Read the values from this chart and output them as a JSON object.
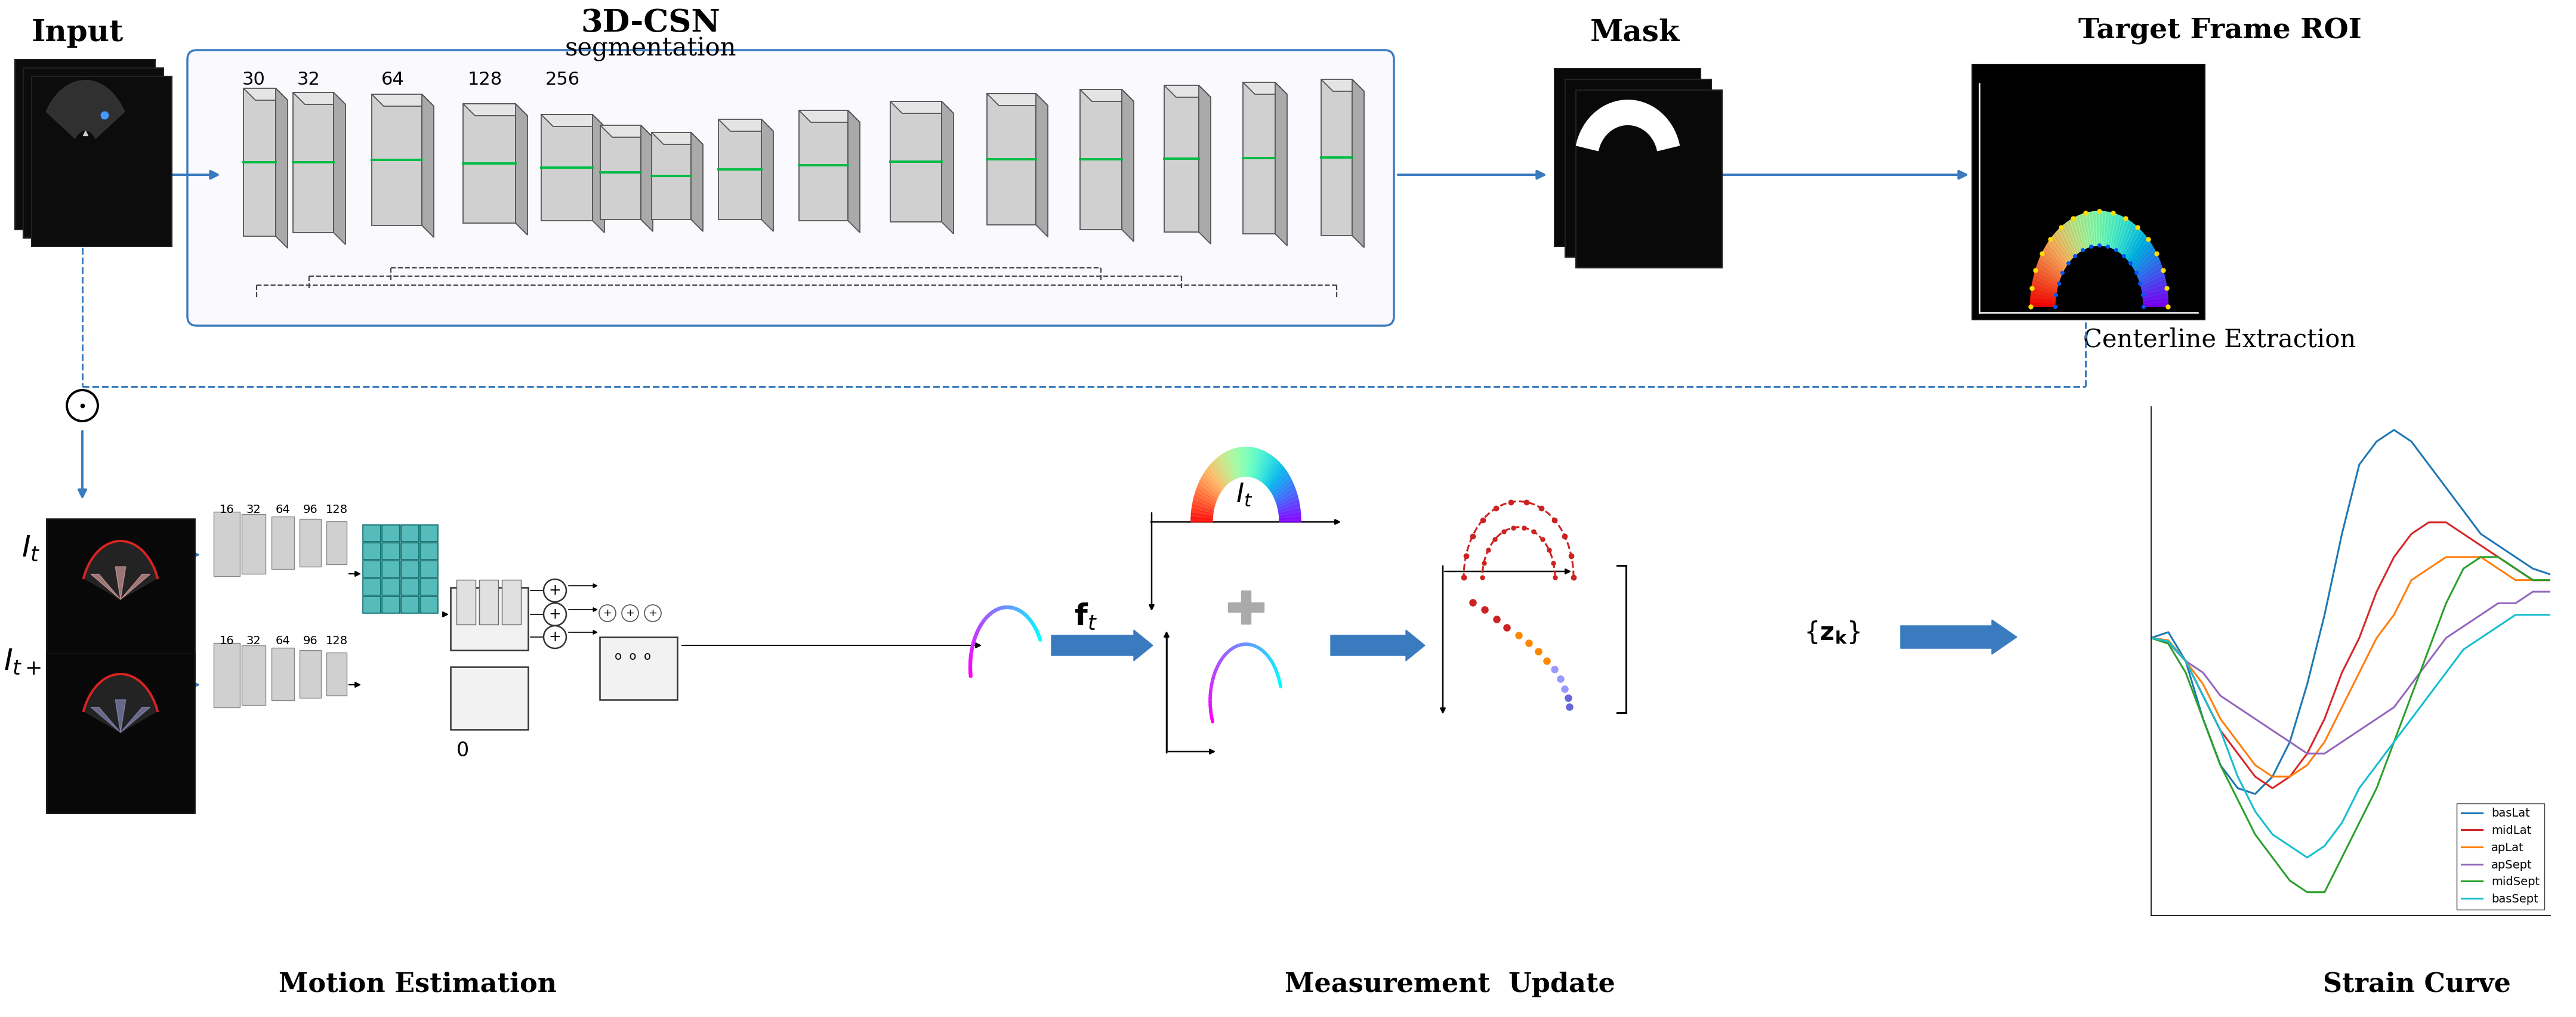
{
  "bg_color": "#ffffff",
  "arrow_color": "#3a7bbf",
  "dashed_color": "#3a7bbf",
  "labels": {
    "input": "Input",
    "cnn3d": "3D-CSN",
    "segmentation": "segmentation",
    "mask": "Mask",
    "target_frame_roi": "Target Frame ROI",
    "centerline": "Centerline Extraction",
    "motion_estimation": "Motion Estimation",
    "measurement_update": "Measurement  Update",
    "strain_curve_label": "Strain Curve"
  },
  "legend_entries": [
    "basLat",
    "midLat",
    "apLat",
    "apSept",
    "midSept",
    "basSept"
  ],
  "legend_colors": [
    "#1f77b4",
    "#d62728",
    "#ff7f0e",
    "#9467bd",
    "#2ca02c",
    "#17becf"
  ],
  "strain_curves": {
    "basLat": [
      0,
      0.5,
      -2,
      -7,
      -11,
      -13,
      -13.5,
      -12,
      -9,
      -4,
      2,
      9,
      15,
      17,
      18,
      17,
      15,
      13,
      11,
      9,
      8,
      7,
      6,
      5.5
    ],
    "midLat": [
      0,
      -0.3,
      -2,
      -5,
      -8,
      -10,
      -12,
      -13,
      -12,
      -10,
      -7,
      -3,
      0,
      4,
      7,
      9,
      10,
      10,
      9,
      8,
      7,
      6,
      5,
      5
    ],
    "apLat": [
      0,
      -0.2,
      -2,
      -4,
      -7,
      -9,
      -11,
      -12,
      -12,
      -11,
      -9,
      -6,
      -3,
      0,
      2,
      5,
      6,
      7,
      7,
      7,
      6,
      5,
      5,
      5
    ],
    "apSept": [
      0,
      -0.4,
      -2,
      -3,
      -5,
      -6,
      -7,
      -8,
      -9,
      -10,
      -10,
      -9,
      -8,
      -7,
      -6,
      -4,
      -2,
      0,
      1,
      2,
      3,
      3,
      4,
      4
    ],
    "midSept": [
      0,
      -0.5,
      -3,
      -7,
      -11,
      -14,
      -17,
      -19,
      -21,
      -22,
      -22,
      -19,
      -16,
      -13,
      -9,
      -5,
      -1,
      3,
      6,
      7,
      7,
      6,
      5,
      5
    ],
    "basSept": [
      0,
      -0.3,
      -2,
      -5,
      -8,
      -12,
      -15,
      -17,
      -18,
      -19,
      -18,
      -16,
      -13,
      -11,
      -9,
      -7,
      -5,
      -3,
      -1,
      0,
      1,
      2,
      2,
      2
    ]
  }
}
